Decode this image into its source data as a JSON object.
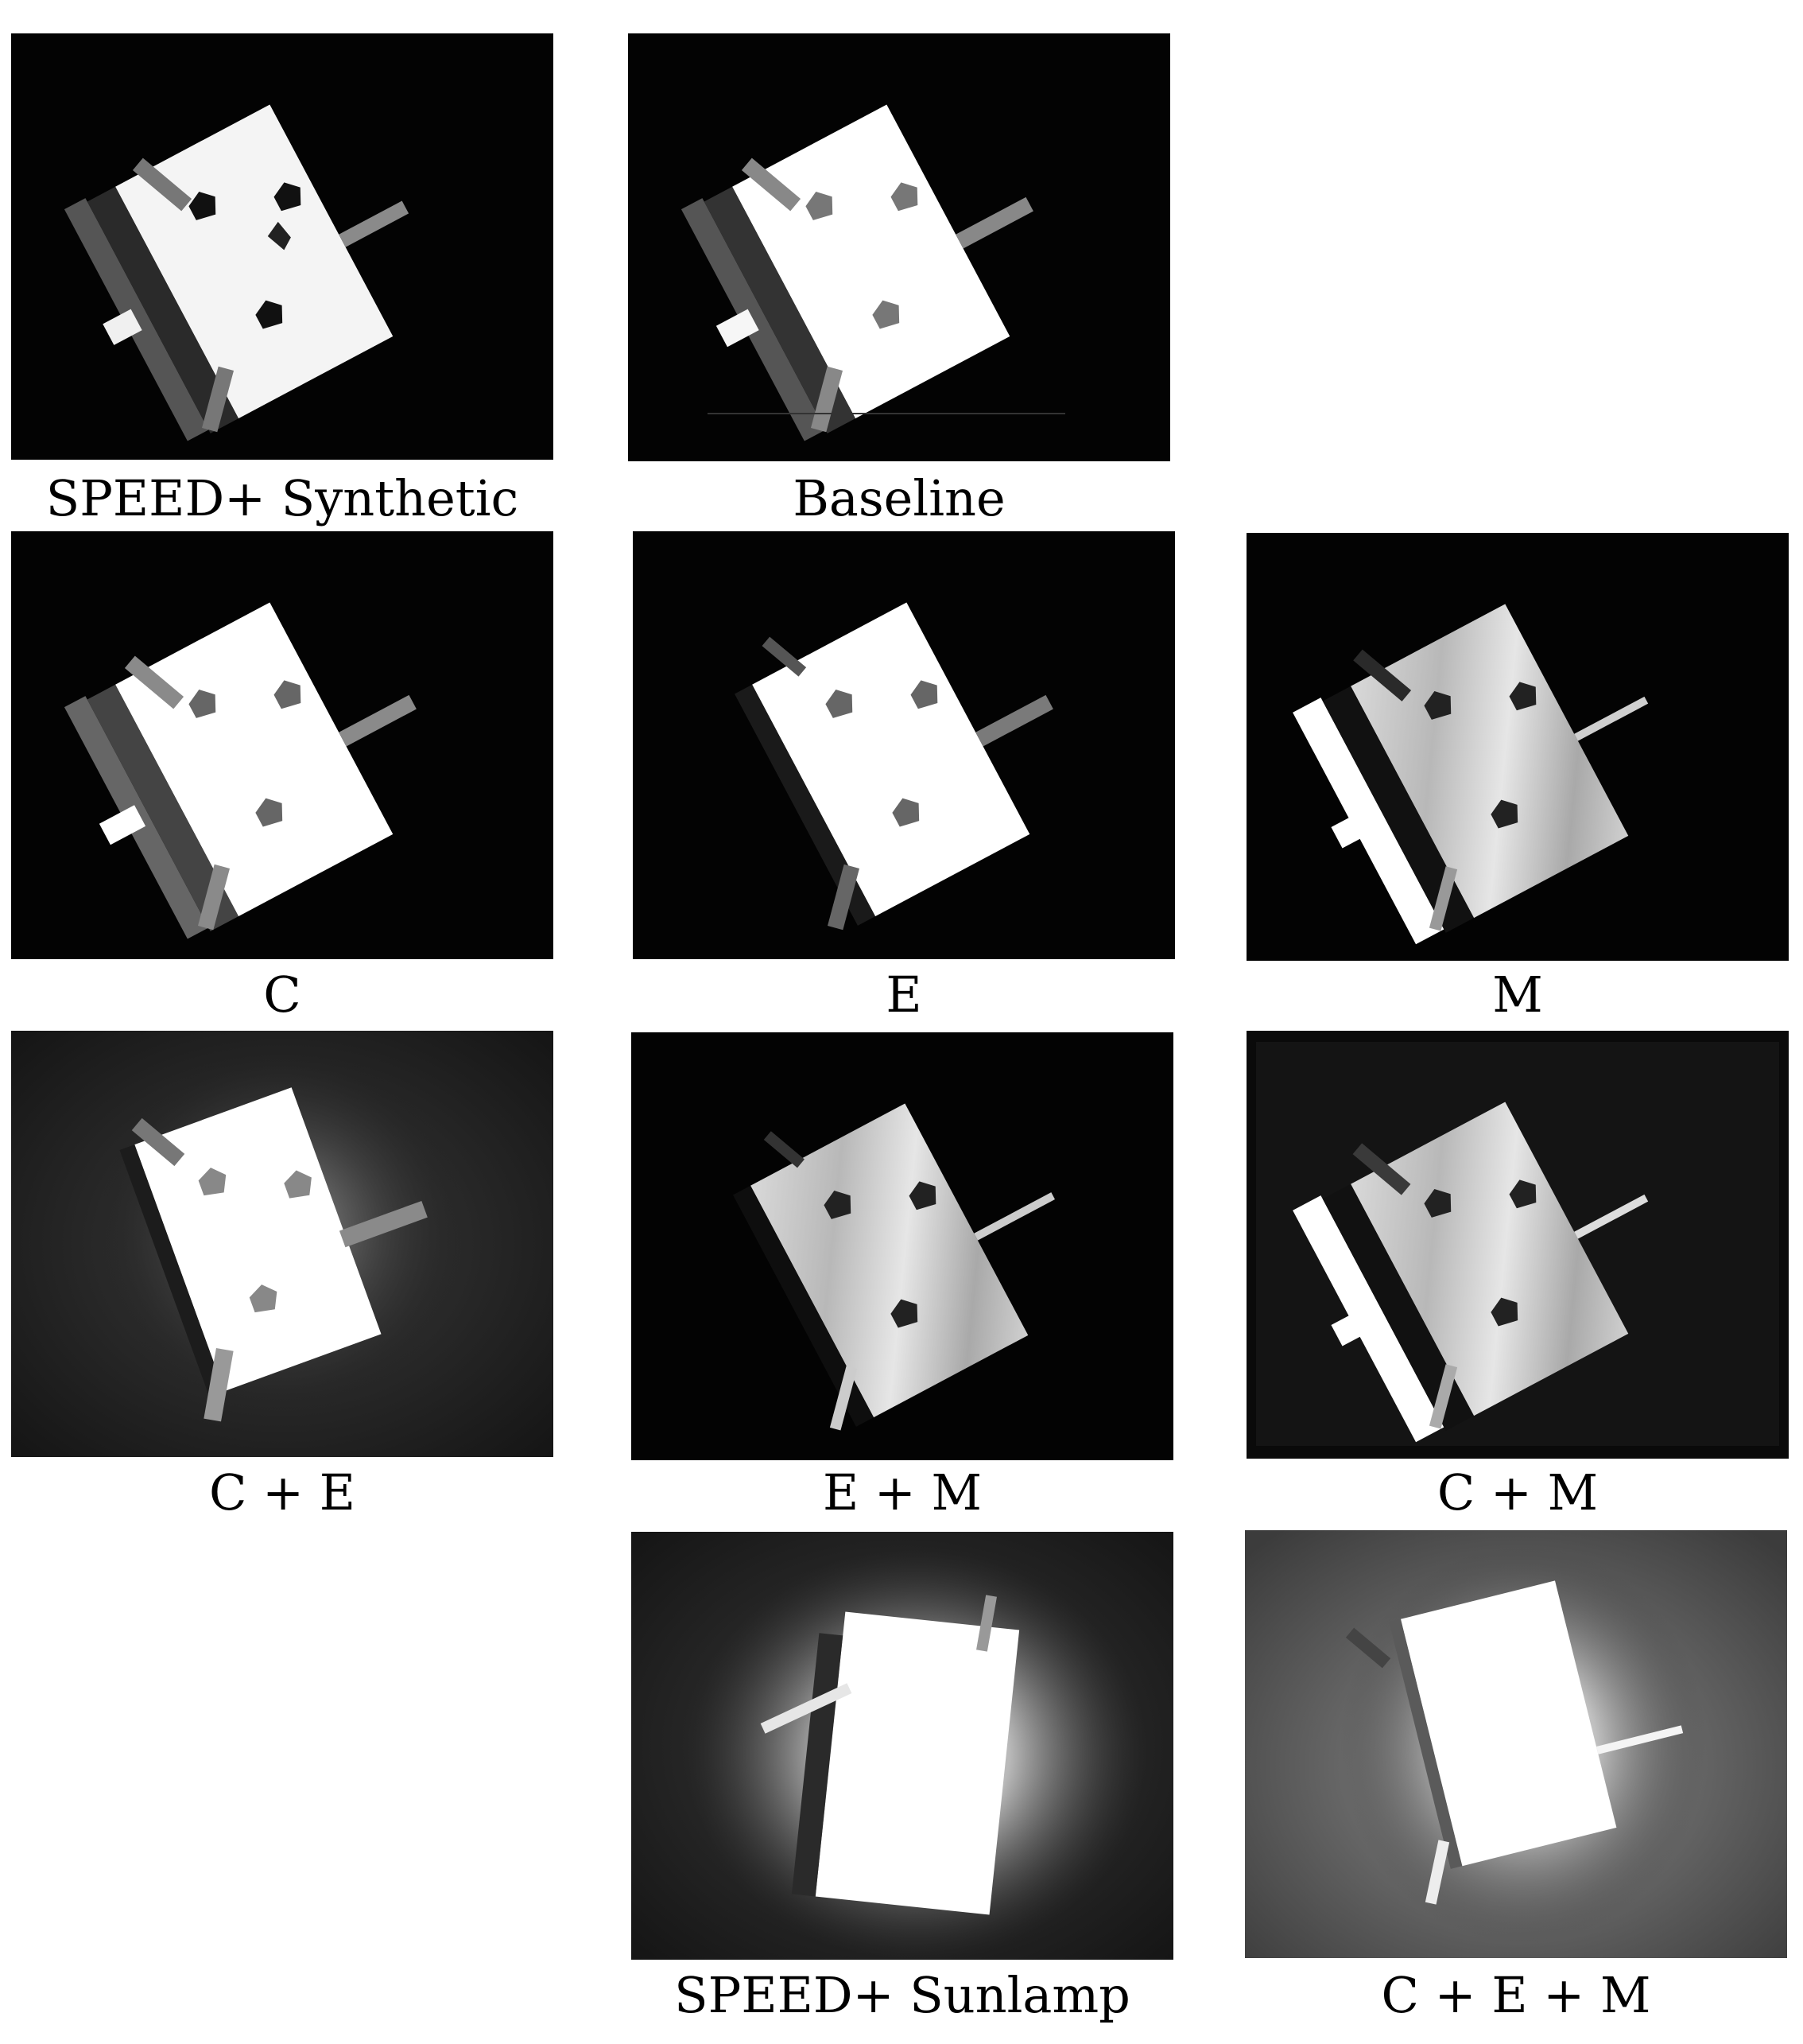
{
  "panels": {
    "speed_synthetic": {
      "caption": "SPEED+ Synthetic"
    },
    "baseline": {
      "caption": "Baseline"
    },
    "c": {
      "caption": "C"
    },
    "e": {
      "caption": "E"
    },
    "m": {
      "caption": "M"
    },
    "c_e": {
      "caption": "C + E"
    },
    "e_m": {
      "caption": "E + M"
    },
    "c_m": {
      "caption": "C + M"
    },
    "speed_sunlamp": {
      "caption": "SPEED+ Sunlamp"
    },
    "c_e_m": {
      "caption": "C + E + M"
    }
  }
}
